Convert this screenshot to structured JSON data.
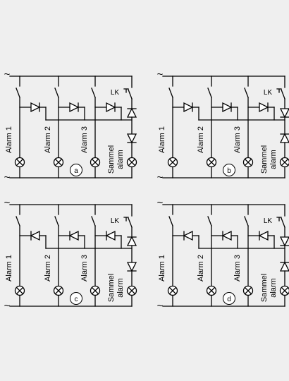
{
  "circuits": [
    {
      "id": "a",
      "diode_direction": "right",
      "right_diodes_direction": "up",
      "labels": [
        "Alarm 1",
        "Alarm 2",
        "Alarm 3"
      ],
      "sammel": [
        "Sammel",
        "alarm"
      ],
      "lk": "LK"
    },
    {
      "id": "b",
      "diode_direction": "right",
      "right_diodes_direction": "down",
      "labels": [
        "Alarm 1",
        "Alarm 2",
        "Alarm 3"
      ],
      "sammel": [
        "Sammel",
        "alarm"
      ],
      "lk": "LK"
    },
    {
      "id": "c",
      "diode_direction": "left",
      "right_diodes_direction": "up",
      "labels": [
        "Alarm 1",
        "Alarm 2",
        "Alarm 3"
      ],
      "sammel": [
        "Sammel",
        "alarm"
      ],
      "lk": "LK"
    },
    {
      "id": "d",
      "diode_direction": "left",
      "right_diodes_direction": "down",
      "labels": [
        "Alarm 1",
        "Alarm 2",
        "Alarm 3"
      ],
      "sammel": [
        "Sammel",
        "alarm"
      ],
      "lk": "LK"
    }
  ],
  "ac_symbol": "~"
}
